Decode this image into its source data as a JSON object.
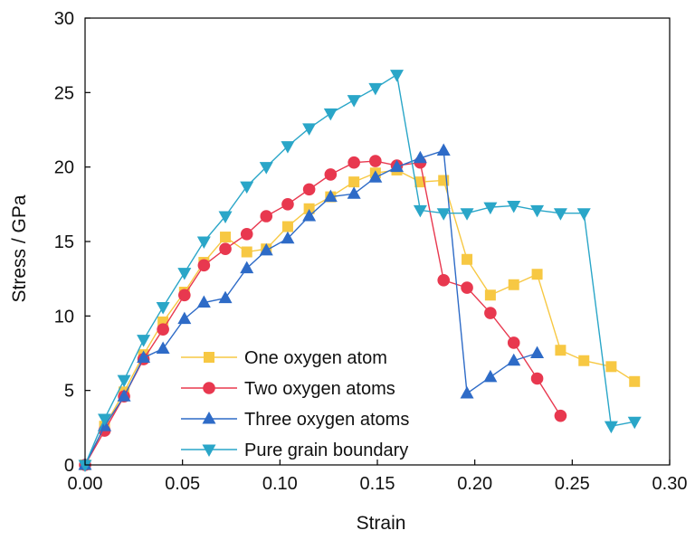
{
  "chart_data": {
    "type": "line",
    "title": "",
    "xlabel": "Strain",
    "ylabel": "Stress / GPa",
    "xlim": [
      0,
      0.3
    ],
    "ylim": [
      0,
      30
    ],
    "xticks": [
      0.0,
      0.05,
      0.1,
      0.15,
      0.2,
      0.25,
      0.3
    ],
    "xtick_labels": [
      "0.00",
      "0.05",
      "0.10",
      "0.15",
      "0.20",
      "0.25",
      "0.30"
    ],
    "yticks": [
      0,
      5,
      10,
      15,
      20,
      25,
      30
    ],
    "ytick_labels": [
      "0",
      "5",
      "10",
      "15",
      "20",
      "25",
      "30"
    ],
    "grid": false,
    "legend_position": "bottom-left",
    "series": [
      {
        "name": "One oxygen atom",
        "color": "#F7C843",
        "marker": "square",
        "x": [
          0.0,
          0.01,
          0.02,
          0.03,
          0.04,
          0.051,
          0.061,
          0.072,
          0.083,
          0.093,
          0.104,
          0.115,
          0.126,
          0.138,
          0.149,
          0.16,
          0.172,
          0.184,
          0.196,
          0.208,
          0.22,
          0.232,
          0.244,
          0.256,
          0.27,
          0.282
        ],
        "y": [
          0.0,
          2.6,
          4.9,
          7.4,
          9.6,
          11.6,
          13.6,
          15.3,
          14.3,
          14.5,
          16.0,
          17.2,
          18.0,
          19.0,
          19.6,
          19.8,
          19.0,
          19.1,
          13.8,
          11.4,
          12.1,
          12.8,
          7.7,
          7.0,
          6.6,
          5.6
        ]
      },
      {
        "name": "Two oxygen atoms",
        "color": "#E8384F",
        "marker": "circle",
        "x": [
          0.0,
          0.01,
          0.02,
          0.03,
          0.04,
          0.051,
          0.061,
          0.072,
          0.083,
          0.093,
          0.104,
          0.115,
          0.126,
          0.138,
          0.149,
          0.16,
          0.172,
          0.184,
          0.196,
          0.208,
          0.22,
          0.232,
          0.244
        ],
        "y": [
          0.0,
          2.3,
          4.6,
          7.1,
          9.1,
          11.4,
          13.4,
          14.5,
          15.5,
          16.7,
          17.5,
          18.5,
          19.5,
          20.3,
          20.4,
          20.1,
          20.3,
          12.4,
          11.9,
          10.2,
          8.2,
          5.8,
          3.3
        ]
      },
      {
        "name": "Three oxygen atoms",
        "color": "#2E6BC7",
        "marker": "triangle-up",
        "x": [
          0.0,
          0.01,
          0.02,
          0.03,
          0.04,
          0.051,
          0.061,
          0.072,
          0.083,
          0.093,
          0.104,
          0.115,
          0.126,
          0.138,
          0.149,
          0.16,
          0.172,
          0.184,
          0.196,
          0.208,
          0.22,
          0.232
        ],
        "y": [
          0.0,
          2.6,
          4.6,
          7.2,
          7.8,
          9.8,
          10.9,
          11.2,
          13.2,
          14.4,
          15.2,
          16.7,
          18.0,
          18.2,
          19.3,
          20.0,
          20.6,
          21.1,
          4.8,
          5.9,
          7.0,
          7.5
        ]
      },
      {
        "name": "Pure grain boundary",
        "color": "#2AA6C8",
        "marker": "triangle-down",
        "x": [
          0.0,
          0.01,
          0.02,
          0.03,
          0.04,
          0.051,
          0.061,
          0.072,
          0.083,
          0.093,
          0.104,
          0.115,
          0.126,
          0.138,
          0.149,
          0.16,
          0.172,
          0.184,
          0.196,
          0.208,
          0.22,
          0.232,
          0.244,
          0.256,
          0.27,
          0.282
        ],
        "y": [
          0.0,
          3.1,
          5.7,
          8.4,
          10.6,
          12.9,
          15.0,
          16.7,
          18.7,
          20.0,
          21.4,
          22.6,
          23.6,
          24.5,
          25.3,
          26.2,
          17.1,
          16.9,
          16.9,
          17.3,
          17.4,
          17.1,
          16.9,
          16.9,
          2.6,
          2.9
        ]
      }
    ]
  }
}
